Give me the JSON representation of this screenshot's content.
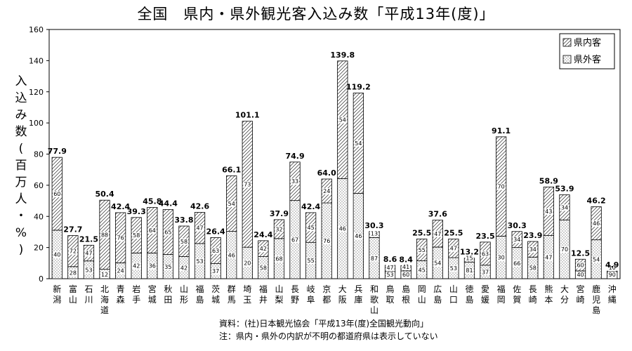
{
  "chart_data": {
    "type": "bar",
    "stacked": true,
    "title": "全国　県内・県外観光客入込み数「平成13年(度)」",
    "ylabel": "入込み数(百万人・%)",
    "ylim": [
      0,
      160
    ],
    "yticks": [
      "0",
      "20",
      "40",
      "60",
      "80",
      "100",
      "120",
      "140",
      "160"
    ],
    "grid": false,
    "legend_position": "top-right",
    "categories": [
      "新潟",
      "富山",
      "石川",
      "北海道",
      "青森",
      "岩手",
      "宮城",
      "秋田",
      "山形",
      "福島",
      "茨城",
      "群馬",
      "埼玉",
      "福井",
      "山梨",
      "長野",
      "岐阜",
      "京都",
      "大阪",
      "兵庫",
      "和歌山",
      "鳥取",
      "島根",
      "岡山",
      "広島",
      "山口",
      "徳島",
      "愛媛",
      "福岡",
      "佐賀",
      "長崎",
      "熊本",
      "大分",
      "宮崎",
      "鹿児島",
      "沖縄"
    ],
    "totals": [
      77.9,
      27.7,
      21.5,
      50.4,
      42.4,
      39.3,
      45.8,
      44.4,
      33.8,
      42.6,
      26.4,
      66.1,
      101.1,
      24.4,
      37.9,
      74.9,
      42.4,
      64.0,
      139.8,
      119.2,
      30.3,
      8.6,
      8.4,
      25.5,
      37.6,
      25.5,
      13.2,
      23.5,
      91.1,
      30.3,
      23.9,
      58.9,
      53.9,
      12.5,
      46.2,
      4.9
    ],
    "total_labels": [
      "77.9",
      "27.7",
      "21.5",
      "50.4",
      "42.4",
      "39.3",
      "45.8",
      "44.4",
      "33.8",
      "42.6",
      "26.4",
      "66.1",
      "101.1",
      "24.4",
      "37.9",
      "74.9",
      "42.4",
      "64.0",
      "139.8",
      "119.2",
      "30.3",
      "8.6",
      "8.4",
      "25.5",
      "37.6",
      "25.5",
      "13.2",
      "23.5",
      "91.1",
      "30.3",
      "23.9",
      "58.9",
      "53.9",
      "12.5",
      "46.2",
      "4.9"
    ],
    "series": [
      {
        "name": "県外客",
        "percent": [
          40,
          28,
          53,
          12,
          24,
          42,
          36,
          35,
          42,
          53,
          37,
          46,
          20,
          58,
          68,
          67,
          55,
          76,
          46,
          46,
          87,
          53,
          60,
          45,
          54,
          53,
          81,
          37,
          30,
          66,
          58,
          47,
          70,
          40,
          54,
          90
        ]
      },
      {
        "name": "県内客",
        "percent": [
          60,
          72,
          47,
          88,
          76,
          58,
          64,
          65,
          58,
          47,
          63,
          54,
          73,
          42,
          32,
          33,
          45,
          24,
          54,
          54,
          13,
          47,
          41,
          55,
          47,
          47,
          15,
          63,
          70,
          34,
          34,
          43,
          34,
          60,
          46,
          10
        ]
      }
    ]
  },
  "source_note": "資料：(社)日本観光協会「平成13年(度)全国観光動向」",
  "footnote": "注：県内・県外の内訳が不明の都道府県は表示していない",
  "ylabel_chars": [
    "入",
    "込",
    "み",
    "数",
    "(",
    "百",
    "万",
    "人",
    "・",
    "%",
    ")"
  ]
}
